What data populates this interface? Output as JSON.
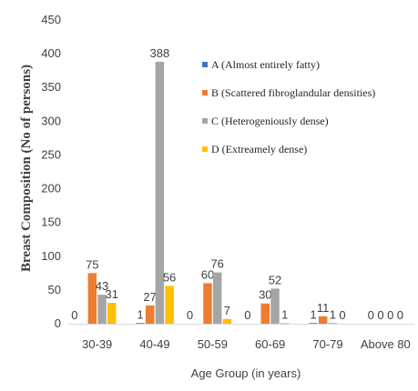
{
  "chart_data": {
    "type": "bar",
    "title": "",
    "xlabel": "Age Group (in years)",
    "ylabel": "Breast Composition (No of persons)",
    "ylim": [
      0,
      450
    ],
    "yticks": [
      0,
      50,
      100,
      150,
      200,
      250,
      300,
      350,
      400,
      450
    ],
    "grid": false,
    "legend_position": "right",
    "categories": [
      "30-39",
      "40-49",
      "50-59",
      "60-69",
      "70-79",
      "Above 80"
    ],
    "series": [
      {
        "name": "A (Almost entirely fatty)",
        "color": "#4472c4",
        "values": [
          0,
          1,
          0,
          0,
          1,
          0
        ]
      },
      {
        "name": "B (Scattered fibroglandular densities)",
        "color": "#ed7d31",
        "values": [
          75,
          27,
          60,
          30,
          11,
          0
        ]
      },
      {
        "name": "C (Heterogeniously dense)",
        "color": "#a5a5a5",
        "values": [
          43,
          388,
          76,
          52,
          1,
          0
        ]
      },
      {
        "name": "D (Extreamely dense)",
        "color": "#ffc000",
        "values": [
          31,
          56,
          7,
          1,
          0,
          0
        ]
      }
    ]
  }
}
